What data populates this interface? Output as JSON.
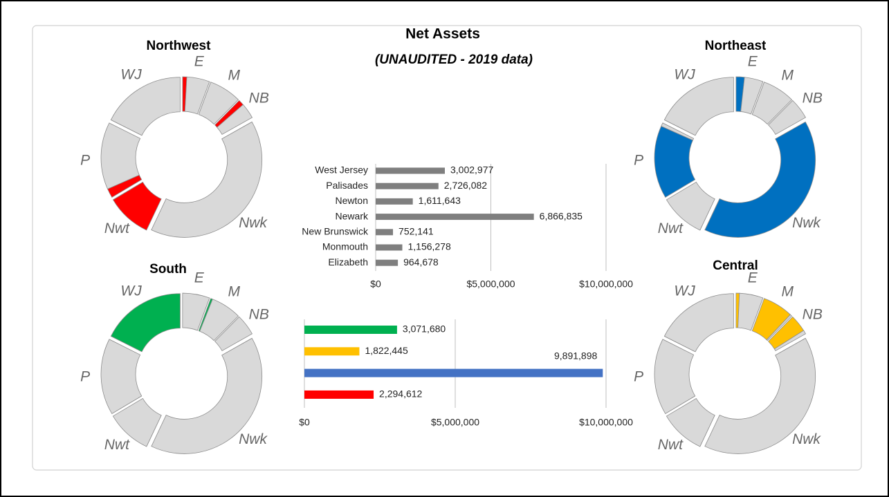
{
  "chart_data": [
    {
      "type": "hbar",
      "title": "Net Assets",
      "subtitle": "(UNAUDITED - 2019 data)",
      "categories": [
        "West Jersey",
        "Palisades",
        "Newton",
        "Newark",
        "New Brunswick",
        "Monmouth",
        "Elizabeth"
      ],
      "values": [
        3002977,
        2726082,
        1611643,
        6866835,
        752141,
        1156278,
        964678
      ],
      "value_labels": [
        "3,002,977",
        "2,726,082",
        "1,611,643",
        "6,866,835",
        "752,141",
        "1,156,278",
        "964,678"
      ],
      "color": "#7f7f7f",
      "xlim": [
        0,
        10000000
      ],
      "xticks": [
        {
          "value": 0,
          "label": "$0"
        },
        {
          "value": 5000000,
          "label": "$5,000,000"
        },
        {
          "value": 10000000,
          "label": "$10,000,000"
        }
      ],
      "grid": true
    },
    {
      "type": "hbar",
      "categories": [
        null,
        null,
        null,
        null
      ],
      "values": [
        3071680,
        1822445,
        9891898,
        2294612
      ],
      "value_labels": [
        "3,071,680",
        "1,822,445",
        "9,891,898",
        "2,294,612"
      ],
      "colors": [
        "#00b050",
        "#ffc000",
        "#4472c4",
        "#ff0000"
      ],
      "xlim": [
        0,
        10000000
      ],
      "xticks": [
        {
          "value": 0,
          "label": "$0"
        },
        {
          "value": 5000000,
          "label": "$5,000,000"
        },
        {
          "value": 10000000,
          "label": "$10,000,000"
        }
      ],
      "grid": true
    },
    {
      "type": "donut",
      "title": "Northwest",
      "categories": [
        "E",
        "M",
        "NB",
        "Nwk",
        "Nwt",
        "P",
        "WJ"
      ],
      "series": [
        {
          "color": "#ff0000",
          "values": [
            150000,
            0,
            200000,
            0,
            1610000,
            330000,
            0
          ]
        },
        {
          "color": "#d9d9d9",
          "values": [
            815000,
            1156000,
            552000,
            6867000,
            0,
            2396000,
            3003000
          ]
        }
      ]
    },
    {
      "type": "donut",
      "title": "Northeast",
      "categories": [
        "E",
        "M",
        "NB",
        "Nwk",
        "Nwt",
        "P",
        "WJ"
      ],
      "series": [
        {
          "color": "#0070c0",
          "values": [
            300000,
            0,
            0,
            6867000,
            0,
            2600000,
            0
          ]
        },
        {
          "color": "#d9d9d9",
          "values": [
            665000,
            1156000,
            752000,
            0,
            1612000,
            126000,
            3003000
          ]
        }
      ]
    },
    {
      "type": "donut",
      "title": "South",
      "categories": [
        "E",
        "M",
        "NB",
        "Nwk",
        "Nwt",
        "P",
        "WJ"
      ],
      "series": [
        {
          "color": "#00b050",
          "values": [
            0,
            70000,
            0,
            0,
            0,
            0,
            3003000
          ]
        },
        {
          "color": "#d9d9d9",
          "values": [
            965000,
            1086000,
            752000,
            6867000,
            1612000,
            2726000,
            0
          ]
        }
      ]
    },
    {
      "type": "donut",
      "title": "Central",
      "categories": [
        "E",
        "M",
        "NB",
        "Nwk",
        "Nwt",
        "P",
        "WJ"
      ],
      "series": [
        {
          "color": "#ffc000",
          "values": [
            120000,
            1086000,
            616000,
            0,
            0,
            0,
            0
          ]
        },
        {
          "color": "#d9d9d9",
          "values": [
            845000,
            70000,
            136000,
            6867000,
            1612000,
            2726000,
            3003000
          ]
        }
      ]
    }
  ]
}
